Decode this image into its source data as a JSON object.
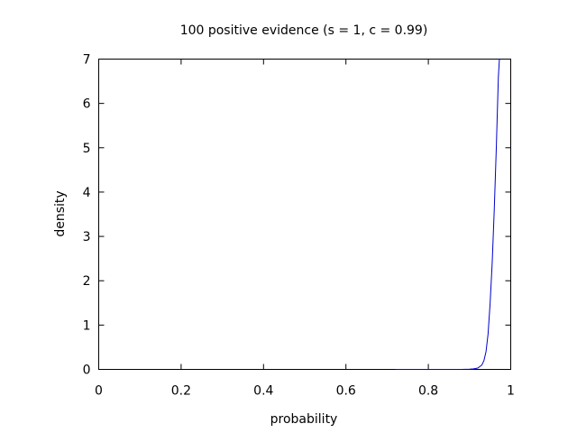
{
  "chart_data": {
    "type": "line",
    "title": "100 positive evidence (s = 1, c = 0.99)",
    "xlabel": "probability",
    "ylabel": "density",
    "xlim": [
      0,
      1
    ],
    "ylim": [
      0,
      7
    ],
    "xticks": [
      0,
      0.2,
      0.4,
      0.6,
      0.8,
      1
    ],
    "xtick_labels": [
      "0",
      "0.2",
      "0.4",
      "0.6",
      "0.8",
      "1"
    ],
    "yticks": [
      0,
      1,
      2,
      3,
      4,
      5,
      6,
      7
    ],
    "ytick_labels": [
      "0",
      "1",
      "2",
      "3",
      "4",
      "5",
      "6",
      "7"
    ],
    "grid": false,
    "legend": "none",
    "series": [
      {
        "name": "density",
        "color": "#0000cc",
        "x": [
          0.72,
          0.76,
          0.8,
          0.84,
          0.86,
          0.88,
          0.9,
          0.91,
          0.92,
          0.93,
          0.935,
          0.94,
          0.945,
          0.95,
          0.955,
          0.96,
          0.965,
          0.97,
          0.9725
        ],
        "y": [
          0.0,
          0.0,
          0.0,
          0.0,
          0.0,
          0.001,
          0.004,
          0.012,
          0.03,
          0.1,
          0.2,
          0.4,
          0.8,
          1.5,
          2.4,
          3.6,
          5.0,
          6.6,
          7.0
        ]
      }
    ]
  }
}
